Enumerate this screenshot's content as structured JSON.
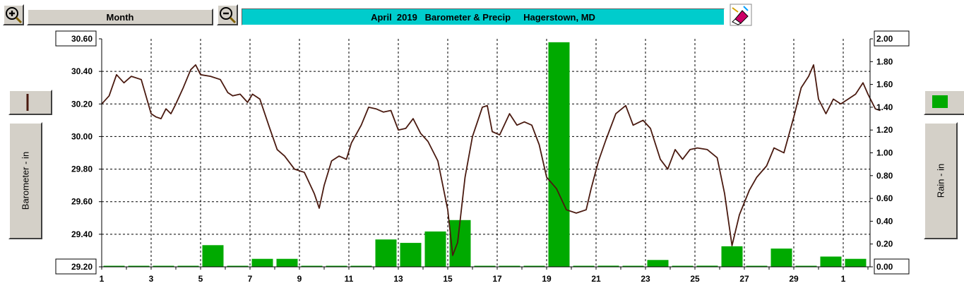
{
  "header": {
    "zoom_in_icon": "magnifier-plus-icon",
    "period_label": "Month",
    "zoom_out_icon": "magnifier-minus-icon",
    "title": "April  2019   Barometer & Precip     Hagerstown, MD",
    "eraser_icon": "eraser-icon"
  },
  "left_panel": {
    "series_swatch_color": "#4a1a10",
    "axis_label": "Barometer - in"
  },
  "right_panel": {
    "series_swatch_color": "#00aa00",
    "axis_label": "Rain - in"
  },
  "chart_data": {
    "type": "line+bar",
    "title": "April  2019   Barometer & Precip     Hagerstown, MD",
    "x": {
      "ticks": [
        "1",
        "3",
        "5",
        "7",
        "9",
        "11",
        "13",
        "15",
        "17",
        "19",
        "21",
        "23",
        "25",
        "27",
        "29",
        "1"
      ],
      "range_days": [
        1,
        31
      ],
      "grid": true
    },
    "y_left": {
      "label": "Barometer - in",
      "range": [
        29.2,
        30.6
      ],
      "ticks": [
        "29.20",
        "29.40",
        "29.60",
        "29.80",
        "30.00",
        "30.20",
        "30.40",
        "30.60"
      ]
    },
    "y_right": {
      "label": "Rain - in",
      "range": [
        0.0,
        2.0
      ],
      "ticks": [
        "0.00",
        "0.20",
        "0.40",
        "0.60",
        "0.80",
        "1.00",
        "1.20",
        "1.40",
        "1.60",
        "1.80",
        "2.00"
      ]
    },
    "series": [
      {
        "name": "Barometer - in",
        "type": "line",
        "color": "#4a1a10",
        "points": [
          [
            1.0,
            30.2
          ],
          [
            1.3,
            30.25
          ],
          [
            1.6,
            30.38
          ],
          [
            1.9,
            30.33
          ],
          [
            2.2,
            30.37
          ],
          [
            2.6,
            30.35
          ],
          [
            3.0,
            30.14
          ],
          [
            3.2,
            30.12
          ],
          [
            3.4,
            30.11
          ],
          [
            3.6,
            30.17
          ],
          [
            3.8,
            30.14
          ],
          [
            4.0,
            30.2
          ],
          [
            4.3,
            30.3
          ],
          [
            4.6,
            30.41
          ],
          [
            4.8,
            30.44
          ],
          [
            5.0,
            30.38
          ],
          [
            5.4,
            30.37
          ],
          [
            5.8,
            30.35
          ],
          [
            6.1,
            30.27
          ],
          [
            6.3,
            30.25
          ],
          [
            6.6,
            30.26
          ],
          [
            6.9,
            30.21
          ],
          [
            7.1,
            30.26
          ],
          [
            7.4,
            30.23
          ],
          [
            7.8,
            30.05
          ],
          [
            8.1,
            29.92
          ],
          [
            8.4,
            29.88
          ],
          [
            8.8,
            29.8
          ],
          [
            9.2,
            29.78
          ],
          [
            9.6,
            29.65
          ],
          [
            9.8,
            29.56
          ],
          [
            10.0,
            29.7
          ],
          [
            10.3,
            29.85
          ],
          [
            10.6,
            29.88
          ],
          [
            10.9,
            29.86
          ],
          [
            11.1,
            29.96
          ],
          [
            11.5,
            30.07
          ],
          [
            11.8,
            30.18
          ],
          [
            12.1,
            30.17
          ],
          [
            12.4,
            30.15
          ],
          [
            12.7,
            30.16
          ],
          [
            13.0,
            30.04
          ],
          [
            13.3,
            30.05
          ],
          [
            13.6,
            30.11
          ],
          [
            13.9,
            30.02
          ],
          [
            14.2,
            29.97
          ],
          [
            14.6,
            29.85
          ],
          [
            15.0,
            29.55
          ],
          [
            15.2,
            29.27
          ],
          [
            15.4,
            29.35
          ],
          [
            15.7,
            29.75
          ],
          [
            16.0,
            30.0
          ],
          [
            16.4,
            30.18
          ],
          [
            16.6,
            30.19
          ],
          [
            16.8,
            30.03
          ],
          [
            17.1,
            30.01
          ],
          [
            17.5,
            30.14
          ],
          [
            17.8,
            30.07
          ],
          [
            18.1,
            30.09
          ],
          [
            18.4,
            30.07
          ],
          [
            18.7,
            29.95
          ],
          [
            19.0,
            29.75
          ],
          [
            19.4,
            29.68
          ],
          [
            19.8,
            29.55
          ],
          [
            20.2,
            29.53
          ],
          [
            20.6,
            29.55
          ],
          [
            20.8,
            29.68
          ],
          [
            21.1,
            29.85
          ],
          [
            21.4,
            29.98
          ],
          [
            21.8,
            30.14
          ],
          [
            22.2,
            30.19
          ],
          [
            22.5,
            30.07
          ],
          [
            22.9,
            30.1
          ],
          [
            23.2,
            30.05
          ],
          [
            23.6,
            29.86
          ],
          [
            23.9,
            29.8
          ],
          [
            24.2,
            29.92
          ],
          [
            24.5,
            29.86
          ],
          [
            24.8,
            29.92
          ],
          [
            25.1,
            29.93
          ],
          [
            25.5,
            29.92
          ],
          [
            25.9,
            29.87
          ],
          [
            26.2,
            29.65
          ],
          [
            26.5,
            29.33
          ],
          [
            26.8,
            29.52
          ],
          [
            27.2,
            29.67
          ],
          [
            27.5,
            29.75
          ],
          [
            27.9,
            29.82
          ],
          [
            28.2,
            29.93
          ],
          [
            28.6,
            29.9
          ],
          [
            29.0,
            30.12
          ],
          [
            29.3,
            30.3
          ],
          [
            29.6,
            30.37
          ],
          [
            29.8,
            30.44
          ],
          [
            30.0,
            30.23
          ],
          [
            30.3,
            30.14
          ],
          [
            30.6,
            30.23
          ],
          [
            30.9,
            30.2
          ],
          [
            31.2,
            30.23
          ],
          [
            31.5,
            30.26
          ],
          [
            31.8,
            30.33
          ],
          [
            32.0,
            30.26
          ],
          [
            32.3,
            30.17
          ],
          [
            32.5,
            30.16
          ]
        ]
      },
      {
        "name": "Rain - in",
        "type": "bar",
        "color": "#00aa00",
        "days": [
          5,
          7,
          8,
          12,
          13,
          14,
          15,
          19,
          21,
          23,
          25,
          26,
          28,
          30,
          31
        ],
        "values": [
          0.19,
          0.07,
          0.07,
          0.24,
          0.21,
          0.31,
          0.41,
          1.97,
          0.01,
          0.06,
          0.01,
          0.18,
          0.16,
          0.09,
          0.07
        ]
      }
    ]
  }
}
